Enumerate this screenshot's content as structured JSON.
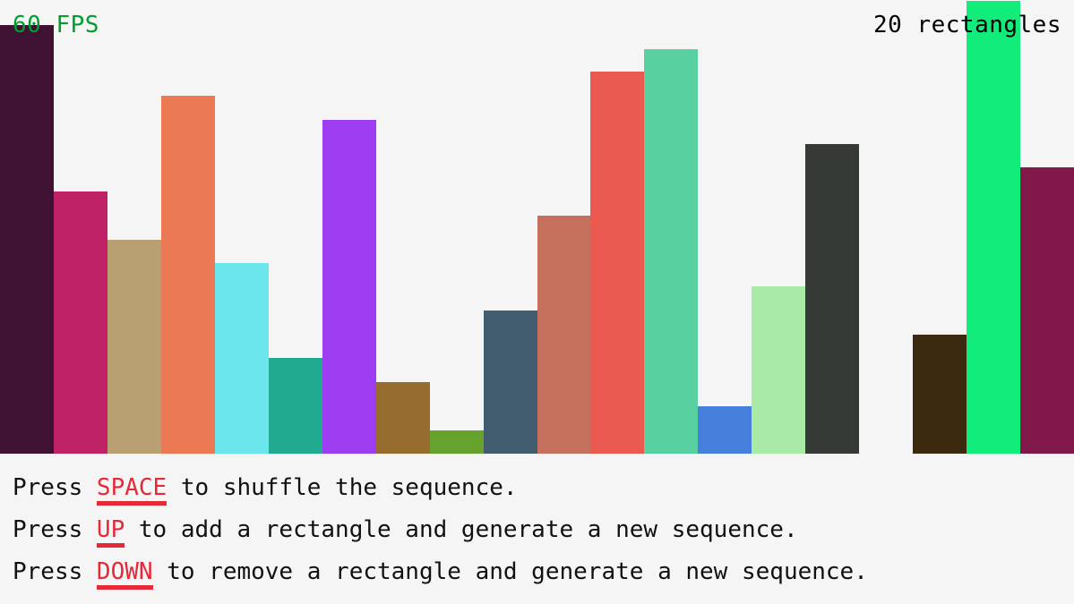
{
  "hud": {
    "fps_label": "60 FPS",
    "count_label": "20 rectangles",
    "fps_color": "#009e2f"
  },
  "accent_color": "#e62937",
  "instructions": [
    {
      "prefix": "Press ",
      "key": "SPACE",
      "suffix": " to shuffle the sequence."
    },
    {
      "prefix": "Press ",
      "key": "UP",
      "suffix": " to add a rectangle and generate a new sequence."
    },
    {
      "prefix": "Press ",
      "key": "DOWN",
      "suffix": " to remove a rectangle and generate a new sequence."
    }
  ],
  "rectangles": [
    {
      "height": 479,
      "color": "#3f1233"
    },
    {
      "height": 293,
      "color": "#bf2366"
    },
    {
      "height": 239,
      "color": "#b8a073"
    },
    {
      "height": 400,
      "color": "#eb7a54"
    },
    {
      "height": 213,
      "color": "#6ae6ec"
    },
    {
      "height": 107,
      "color": "#22aa90"
    },
    {
      "height": 373,
      "color": "#9d3cf0"
    },
    {
      "height": 80,
      "color": "#966d2e"
    },
    {
      "height": 26,
      "color": "#66a22c"
    },
    {
      "height": 160,
      "color": "#435d70"
    },
    {
      "height": 266,
      "color": "#c6705e"
    },
    {
      "height": 427,
      "color": "#eb5a50"
    },
    {
      "height": 452,
      "color": "#58d0a0"
    },
    {
      "height": 53,
      "color": "#4680dc"
    },
    {
      "height": 187,
      "color": "#a8eaa6"
    },
    {
      "height": 346,
      "color": "#353a36"
    },
    {
      "height": 0,
      "color": "#f5f5f5"
    },
    {
      "height": 133,
      "color": "#3c2a10"
    },
    {
      "height": 506,
      "color": "#12ec7a"
    },
    {
      "height": 320,
      "color": "#82184a"
    }
  ]
}
